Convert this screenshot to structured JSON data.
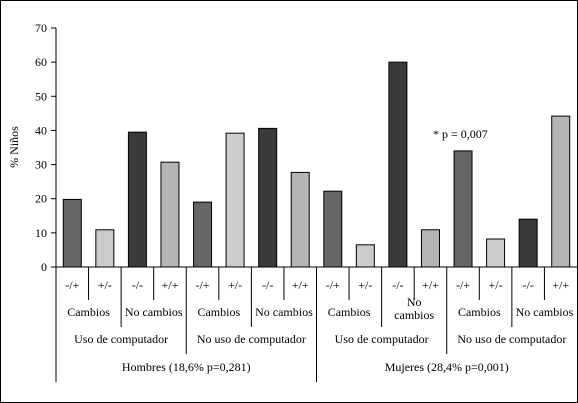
{
  "chart_data": {
    "type": "bar",
    "ylabel": "% Niños",
    "ylim": [
      0,
      70
    ],
    "yticks": [
      0,
      10,
      20,
      30,
      40,
      50,
      60,
      70
    ],
    "categories": [
      "-/+",
      "+/-",
      "-/-",
      "+/+",
      "-/+",
      "+/-",
      "-/-",
      "+/+",
      "-/+",
      "+/-",
      "-/-",
      "+/+",
      "-/+",
      "+/-",
      "-/-",
      "+/+"
    ],
    "values": [
      19.8,
      10.9,
      39.5,
      30.7,
      19.0,
      39.2,
      40.6,
      27.7,
      22.2,
      6.5,
      60.0,
      10.9,
      34.0,
      8.2,
      14.0,
      44.2
    ],
    "bar_colors": [
      "#666666",
      "#cccccc",
      "#3a3a3a",
      "#b5b5b5",
      "#666666",
      "#cccccc",
      "#3a3a3a",
      "#b5b5b5",
      "#666666",
      "#cccccc",
      "#3a3a3a",
      "#b5b5b5",
      "#666666",
      "#cccccc",
      "#3a3a3a",
      "#b5b5b5"
    ],
    "group_labels_level1": [
      "Cambios",
      "No cambios",
      "Cambios",
      "No cambios",
      "Cambios",
      "No\ncambios",
      "Cambios",
      "No cambios"
    ],
    "group_labels_level2": [
      "Uso de computador",
      "No uso de computador",
      "Uso de computador",
      "No uso de computador"
    ],
    "group_labels_level3": [
      "Hombres (18,6% p=0,281)",
      "Mujeres (28,4% p=0,001)"
    ],
    "annotations": [
      {
        "text": "* p = 0,007"
      }
    ],
    "grid": false,
    "legend": "none"
  }
}
